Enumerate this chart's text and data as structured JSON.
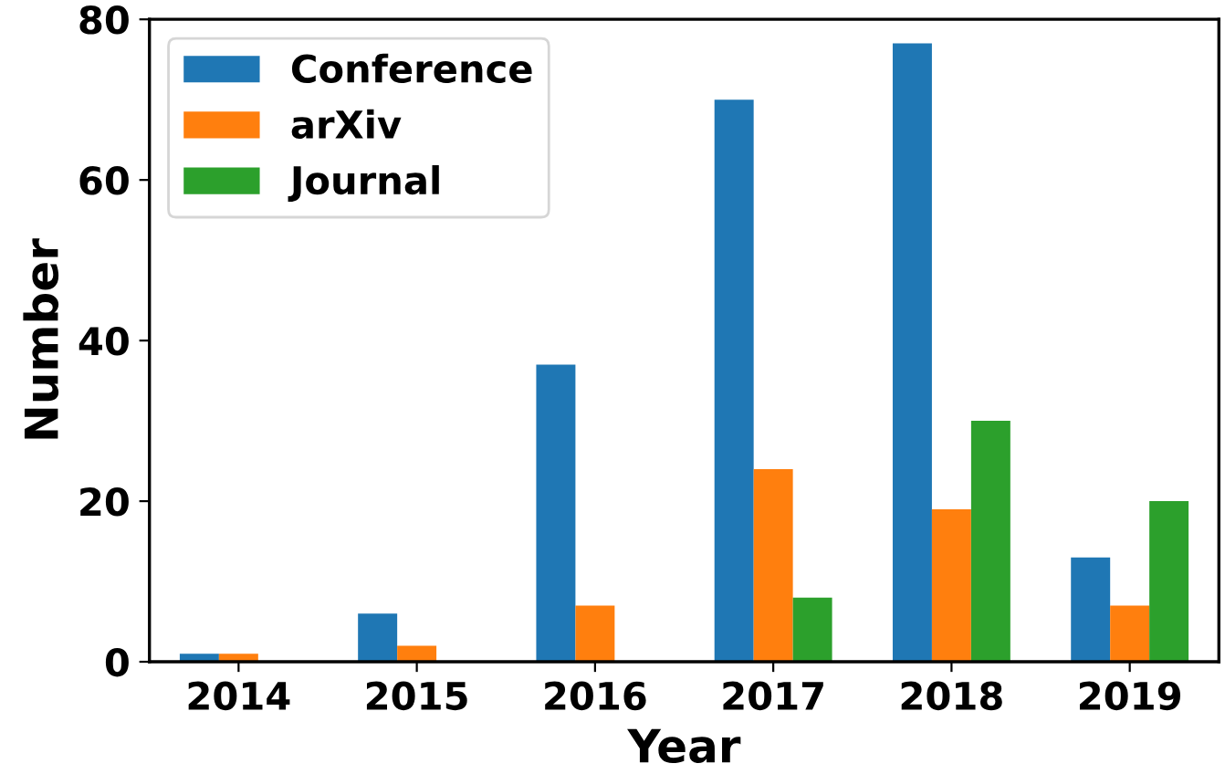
{
  "chart_data": {
    "type": "bar",
    "xlabel": "Year",
    "ylabel": "Number",
    "categories": [
      "2014",
      "2015",
      "2016",
      "2017",
      "2018",
      "2019"
    ],
    "series": [
      {
        "name": "Conference",
        "color": "#1f77b4",
        "values": [
          1,
          6,
          37,
          70,
          77,
          13
        ]
      },
      {
        "name": "arXiv",
        "color": "#ff7f0e",
        "values": [
          1,
          2,
          7,
          24,
          19,
          7
        ]
      },
      {
        "name": "Journal",
        "color": "#2ca02c",
        "values": [
          null,
          null,
          null,
          8,
          30,
          20
        ]
      }
    ],
    "ylim": [
      0,
      80
    ],
    "yticks": [
      0,
      20,
      40,
      60,
      80
    ],
    "legend": "top left",
    "grid": false
  }
}
